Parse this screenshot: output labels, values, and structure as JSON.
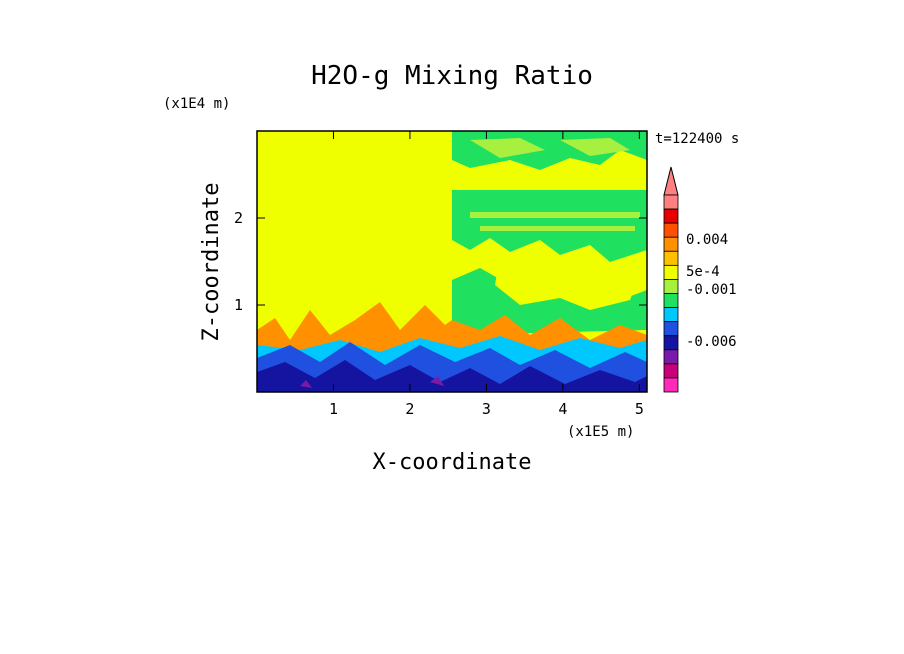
{
  "chart_data": {
    "type": "heatmap",
    "title": "H2O-g Mixing Ratio",
    "xlabel": "X-coordinate",
    "ylabel": "Z-coordinate",
    "x_multiplier": "(x1E5 m)",
    "y_multiplier": "(x1E4 m)",
    "time_label": "t=122400 s",
    "xlim": [
      0,
      5.1
    ],
    "ylim": [
      0,
      3
    ],
    "x_ticks": [
      "1",
      "2",
      "3",
      "4",
      "5"
    ],
    "y_ticks": [
      "1",
      "2"
    ],
    "colorbar": {
      "labels": [
        "0.004",
        "5e-4",
        "-0.001",
        "-0.006"
      ],
      "colors": [
        "#ff2ab8",
        "#c8007a",
        "#7a1aa8",
        "#1414a0",
        "#2050e0",
        "#00c8ff",
        "#20e060",
        "#a8f040",
        "#f0ff00",
        "#ffc000",
        "#ff9000",
        "#ff5000",
        "#e80000",
        "#ff8080"
      ]
    }
  },
  "colors": {
    "background_upper": "#f0ff00",
    "band_green": "#20e060",
    "pale_green": "#a8f040",
    "orange": "#ff9000",
    "cyan": "#00c8ff",
    "blue": "#2050e0",
    "navy": "#1414a0",
    "purple": "#7a1aa8"
  }
}
